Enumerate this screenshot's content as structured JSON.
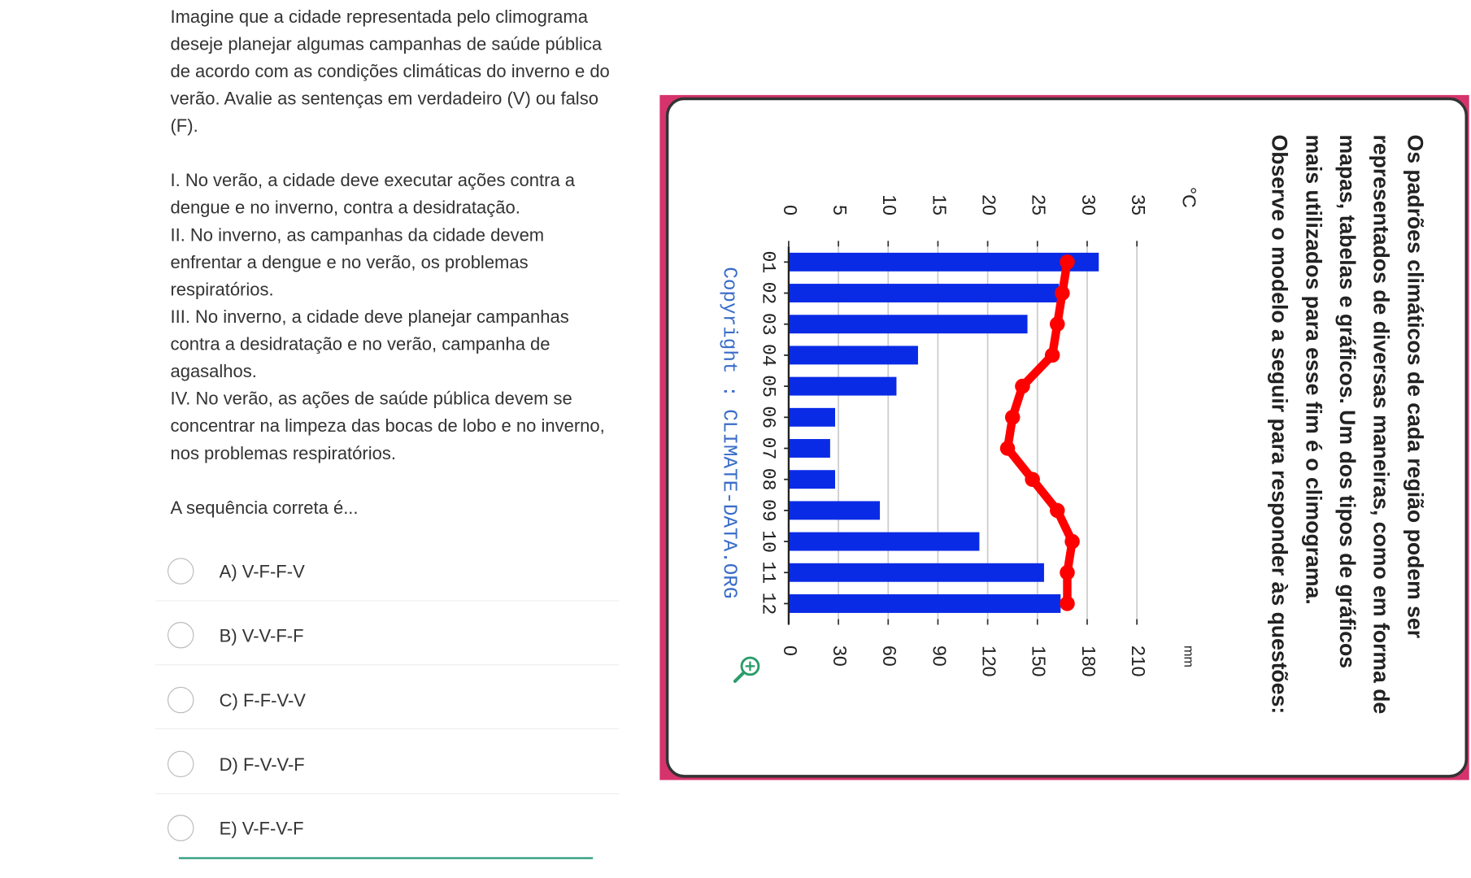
{
  "question": {
    "intro": "Imagine que a cidade representada pelo climograma deseje planejar algumas campanhas de saúde pública de acordo com as condições climáticas do inverno e do verão. Avalie as sentenças em verdadeiro (V) ou falso (F).",
    "statements": [
      "I. No verão, a cidade deve executar ações contra a dengue e no inverno, contra a desidratação.",
      "II. No inverno, as campanhas da cidade devem enfrentar a dengue e no verão, os problemas respiratórios.",
      "III. No inverno, a cidade deve planejar campanhas contra a desidratação e no verão, campanha de agasalhos.",
      "IV. No verão, as ações de saúde pública devem se concentrar na limpeza das bocas de lobo e no inverno, nos problemas respiratórios."
    ],
    "prompt": "A sequência correta é...",
    "options": [
      "A) V-F-F-V",
      "B) V-V-F-F",
      "C) F-F-V-V",
      "D) F-V-V-F",
      "E) V-F-V-F"
    ]
  },
  "panel": {
    "text": [
      "Os padrões climáticos de cada região podem ser",
      "representados de diversas maneiras, como em forma de",
      "mapas, tabelas e gráficos. Um dos tipos de gráficos",
      "mais utilizados para esse fim é o climograma.",
      "Observe o modelo a seguir para responder às questões:"
    ],
    "copyright": "Copyright : CLIMATE-DATA.ORG"
  },
  "chart_data": {
    "type": "bar",
    "categories": [
      "01",
      "02",
      "03",
      "04",
      "05",
      "06",
      "07",
      "08",
      "09",
      "10",
      "11",
      "12"
    ],
    "series": [
      {
        "type": "bar",
        "axis": "y2",
        "color": "#0a2be6",
        "values": [
          187,
          163,
          144,
          78,
          65,
          28,
          25,
          28,
          55,
          115,
          154,
          164
        ]
      },
      {
        "type": "line",
        "color": "#ff0000",
        "values": [
          28,
          27.5,
          27,
          26.5,
          23.5,
          22.5,
          22,
          24.5,
          27,
          28.5,
          28,
          28
        ]
      }
    ],
    "ylabel": "°C",
    "y2label": "mm",
    "ylim": [
      0,
      35
    ],
    "yticks": [
      0,
      5,
      10,
      15,
      20,
      25,
      30,
      35
    ],
    "y2lim": [
      0,
      210
    ],
    "y2ticks": [
      0,
      30,
      60,
      90,
      120,
      150,
      180,
      210
    ],
    "grid": true
  }
}
